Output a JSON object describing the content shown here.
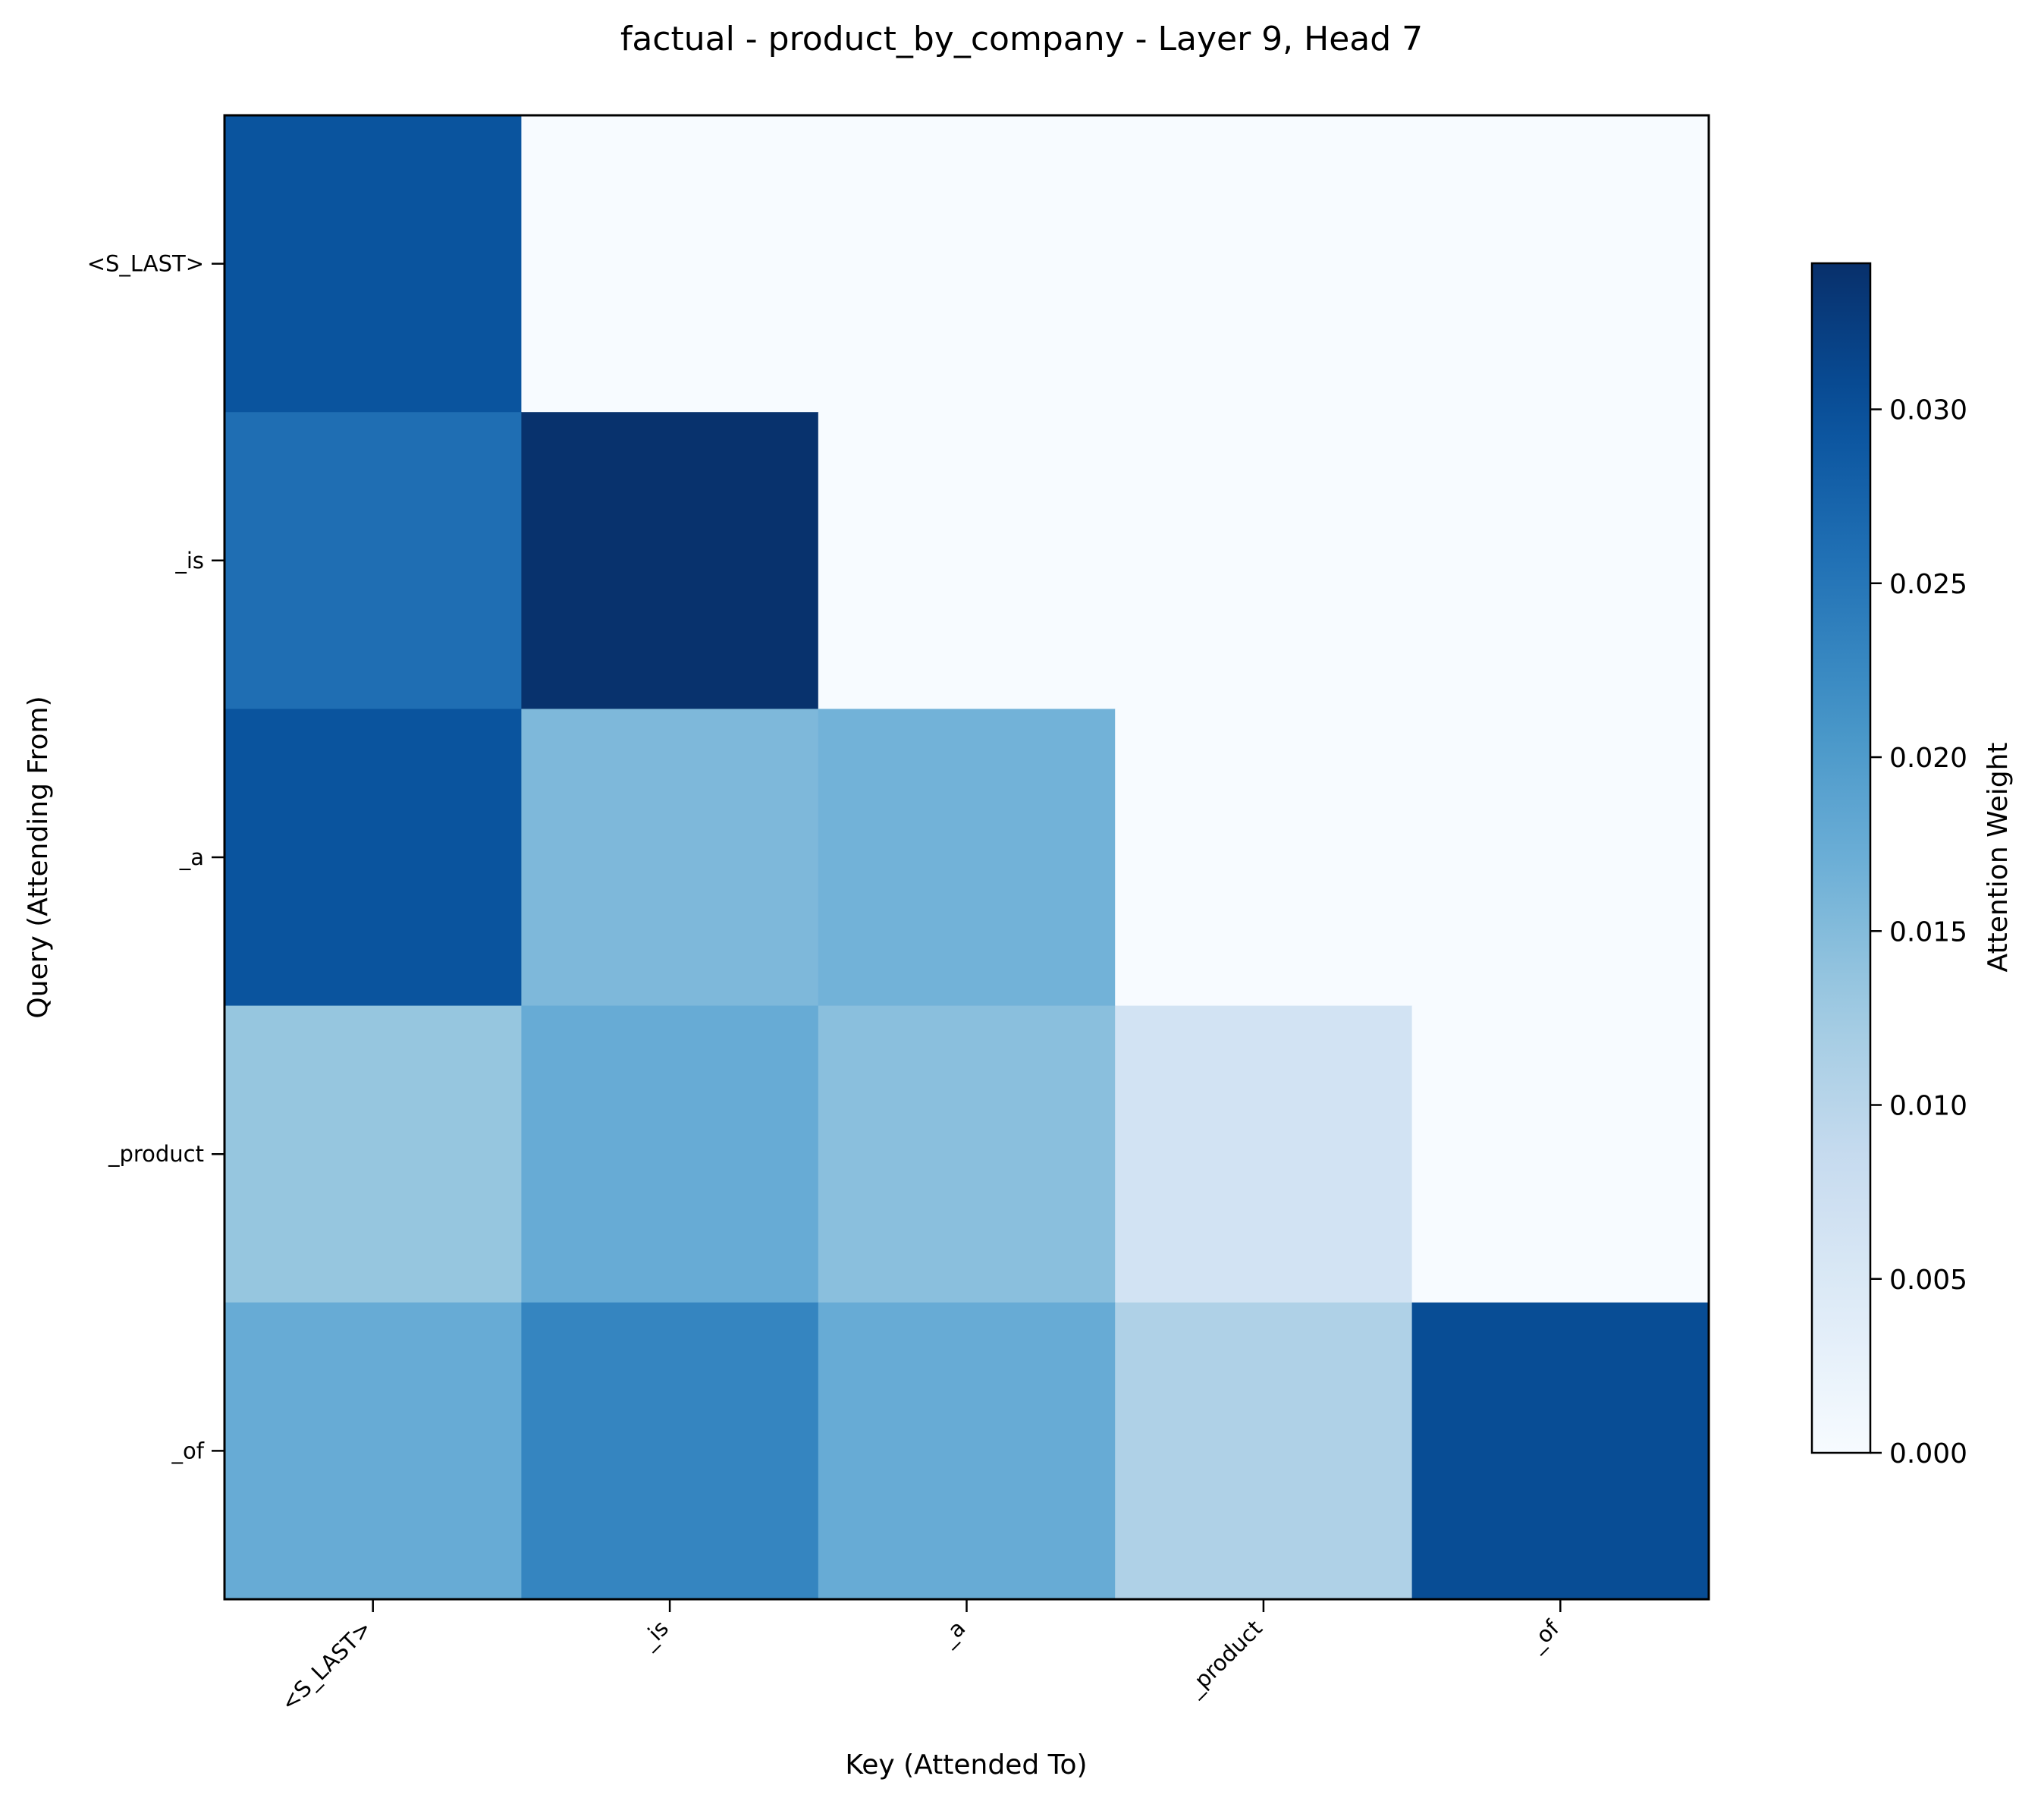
{
  "chart_data": {
    "type": "heatmap",
    "title": "factual - product_by_company - Layer 9, Head 7",
    "xlabel": "Key (Attended To)",
    "ylabel": "Query (Attending From)",
    "x_categories": [
      "<S_LAST>",
      "_is",
      "_a",
      "_product",
      "_of"
    ],
    "y_categories": [
      "<S_LAST>",
      "_is",
      "_a",
      "_product",
      "_of"
    ],
    "values": [
      [
        0.0295,
        0.0,
        0.0,
        0.0,
        0.0
      ],
      [
        0.026,
        0.034,
        0.0,
        0.0,
        0.0
      ],
      [
        0.0295,
        0.0155,
        0.0165,
        0.0,
        0.0
      ],
      [
        0.0135,
        0.0175,
        0.0145,
        0.0065,
        0.0
      ],
      [
        0.0175,
        0.023,
        0.0175,
        0.011,
        0.0305
      ]
    ],
    "colorbar": {
      "label": "Attention Weight",
      "range": [
        0,
        0.0342
      ],
      "ticks": [
        "0.000",
        "0.005",
        "0.010",
        "0.015",
        "0.020",
        "0.025",
        "0.030"
      ],
      "colormap": "Blues"
    },
    "grid": false,
    "legend": "none"
  }
}
